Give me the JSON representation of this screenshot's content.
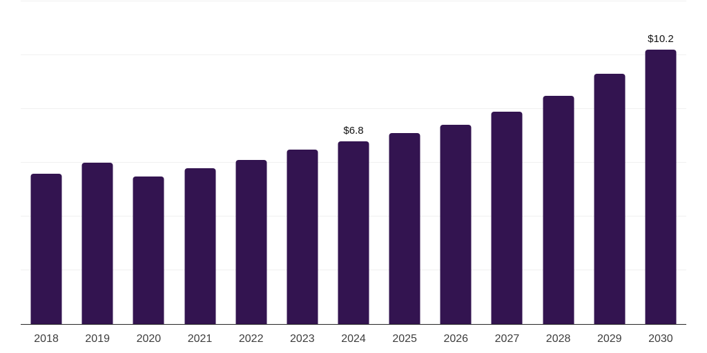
{
  "chart": {
    "background_color": "#ffffff",
    "bar_color": "#331450",
    "grid_color": "#f0f0f0",
    "axis_color": "#262626",
    "tick_label_color": "#3d3d3d",
    "data_label_color": "#111111"
  },
  "chart_data": {
    "type": "bar",
    "title": "",
    "xlabel": "",
    "ylabel": "",
    "categories": [
      "2018",
      "2019",
      "2020",
      "2021",
      "2022",
      "2023",
      "2024",
      "2025",
      "2026",
      "2027",
      "2028",
      "2029",
      "2030"
    ],
    "values": [
      5.6,
      6.0,
      5.5,
      5.8,
      6.1,
      6.5,
      6.8,
      7.1,
      7.4,
      7.9,
      8.5,
      9.3,
      10.2
    ],
    "data_labels": [
      null,
      null,
      null,
      null,
      null,
      null,
      "$6.8",
      null,
      null,
      null,
      null,
      null,
      "$10.2"
    ],
    "ylim": [
      0,
      12
    ],
    "grid_step": 2,
    "grid": "horizontal-only",
    "y_tick_labels_visible": false,
    "legend": "none"
  }
}
